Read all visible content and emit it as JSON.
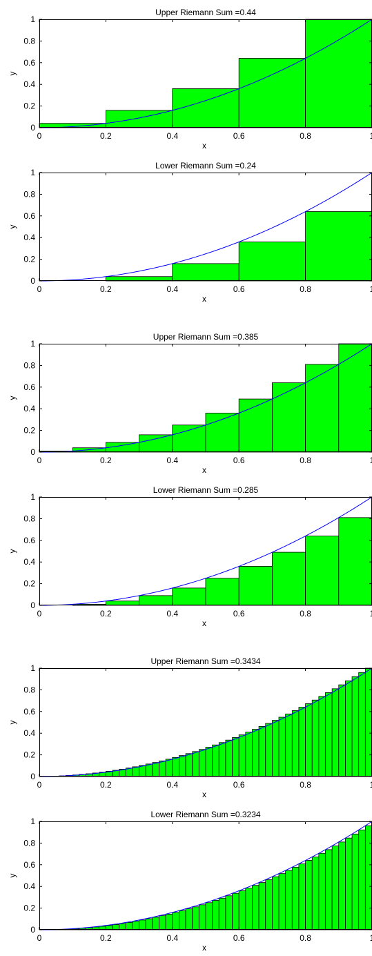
{
  "colors": {
    "bar_fill": "#00ff00",
    "bar_edge": "#000000",
    "curve": "#0000ff",
    "axes": "#000000",
    "background": "#ffffff"
  },
  "chart_data": [
    {
      "type": "bar",
      "title": "Upper Riemann Sum =0.44",
      "xlabel": "x",
      "ylabel": "y",
      "xlim": [
        0,
        1
      ],
      "ylim": [
        0,
        1
      ],
      "xticks": [
        "0",
        "0.2",
        "0.4",
        "0.6",
        "0.8",
        "1"
      ],
      "yticks": [
        "0",
        "0.2",
        "0.4",
        "0.6",
        "0.8",
        "1"
      ],
      "grid": false,
      "n": 5,
      "bar_height_rule": "right endpoint of x^2",
      "values": [
        0.04,
        0.16,
        0.36,
        0.64,
        1.0
      ],
      "curve": "y = x^2"
    },
    {
      "type": "bar",
      "title": "Lower Riemann Sum =0.24",
      "xlabel": "x",
      "ylabel": "y",
      "xlim": [
        0,
        1
      ],
      "ylim": [
        0,
        1
      ],
      "xticks": [
        "0",
        "0.2",
        "0.4",
        "0.6",
        "0.8",
        "1"
      ],
      "yticks": [
        "0",
        "0.2",
        "0.4",
        "0.6",
        "0.8",
        "1"
      ],
      "grid": false,
      "n": 5,
      "bar_height_rule": "left endpoint of x^2",
      "values": [
        0,
        0.04,
        0.16,
        0.36,
        0.64
      ],
      "curve": "y = x^2"
    },
    {
      "type": "bar",
      "title": "Upper Riemann Sum =0.385",
      "xlabel": "x",
      "ylabel": "y",
      "xlim": [
        0,
        1
      ],
      "ylim": [
        0,
        1
      ],
      "xticks": [
        "0",
        "0.2",
        "0.4",
        "0.6",
        "0.8",
        "1"
      ],
      "yticks": [
        "0",
        "0.2",
        "0.4",
        "0.6",
        "0.8",
        "1"
      ],
      "grid": false,
      "n": 10,
      "bar_height_rule": "right endpoint of x^2",
      "values": [
        0.01,
        0.04,
        0.09,
        0.16,
        0.25,
        0.36,
        0.49,
        0.64,
        0.81,
        1.0
      ],
      "curve": "y = x^2"
    },
    {
      "type": "bar",
      "title": "Lower Riemann Sum =0.285",
      "xlabel": "x",
      "ylabel": "y",
      "xlim": [
        0,
        1
      ],
      "ylim": [
        0,
        1
      ],
      "xticks": [
        "0",
        "0.2",
        "0.4",
        "0.6",
        "0.8",
        "1"
      ],
      "yticks": [
        "0",
        "0.2",
        "0.4",
        "0.6",
        "0.8",
        "1"
      ],
      "grid": false,
      "n": 10,
      "bar_height_rule": "left endpoint of x^2",
      "values": [
        0,
        0.01,
        0.04,
        0.09,
        0.16,
        0.25,
        0.36,
        0.49,
        0.64,
        0.81
      ],
      "curve": "y = x^2"
    },
    {
      "type": "bar",
      "title": "Upper Riemann Sum =0.3434",
      "xlabel": "x",
      "ylabel": "y",
      "xlim": [
        0,
        1
      ],
      "ylim": [
        0,
        1
      ],
      "xticks": [
        "0",
        "0.2",
        "0.4",
        "0.6",
        "0.8",
        "1"
      ],
      "yticks": [
        "0",
        "0.2",
        "0.4",
        "0.6",
        "0.8",
        "1"
      ],
      "grid": false,
      "n": 50,
      "bar_height_rule": "right endpoint of x^2",
      "values": [
        0.0004,
        0.0016,
        0.0036,
        0.0064,
        0.01,
        0.0144,
        0.0196,
        0.0256,
        0.0324,
        0.04,
        0.0484,
        0.0576,
        0.0676,
        0.0784,
        0.09,
        0.1024,
        0.1156,
        0.1296,
        0.1444,
        0.16,
        0.1764,
        0.1936,
        0.2116,
        0.2304,
        0.25,
        0.2704,
        0.2916,
        0.3136,
        0.3364,
        0.36,
        0.3844,
        0.4096,
        0.4356,
        0.4624,
        0.49,
        0.5184,
        0.5476,
        0.5776,
        0.6084,
        0.64,
        0.6724,
        0.7056,
        0.7396,
        0.7744,
        0.81,
        0.8464,
        0.8836,
        0.9216,
        0.9604,
        1.0
      ],
      "curve": "y = x^2"
    },
    {
      "type": "bar",
      "title": "Lower Riemann Sum =0.3234",
      "xlabel": "x",
      "ylabel": "y",
      "xlim": [
        0,
        1
      ],
      "ylim": [
        0,
        1
      ],
      "xticks": [
        "0",
        "0.2",
        "0.4",
        "0.6",
        "0.8",
        "1"
      ],
      "yticks": [
        "0",
        "0.2",
        "0.4",
        "0.6",
        "0.8",
        "1"
      ],
      "grid": false,
      "n": 50,
      "bar_height_rule": "left endpoint of x^2",
      "values": [
        0,
        0.0004,
        0.0016,
        0.0036,
        0.0064,
        0.01,
        0.0144,
        0.0196,
        0.0256,
        0.0324,
        0.04,
        0.0484,
        0.0576,
        0.0676,
        0.0784,
        0.09,
        0.1024,
        0.1156,
        0.1296,
        0.1444,
        0.16,
        0.1764,
        0.1936,
        0.2116,
        0.2304,
        0.25,
        0.2704,
        0.2916,
        0.3136,
        0.3364,
        0.36,
        0.3844,
        0.4096,
        0.4356,
        0.4624,
        0.49,
        0.5184,
        0.5476,
        0.5776,
        0.6084,
        0.64,
        0.6724,
        0.7056,
        0.7396,
        0.7744,
        0.81,
        0.8464,
        0.8836,
        0.9216,
        0.9604
      ],
      "curve": "y = x^2"
    }
  ]
}
